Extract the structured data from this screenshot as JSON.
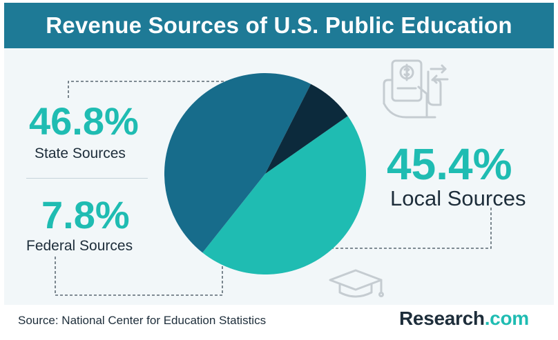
{
  "title": "Revenue Sources of U.S. Public Education",
  "source": "Source: National Center for Education Statistics",
  "brand": {
    "name": "Research",
    "suffix": ".com"
  },
  "labels": {
    "state": {
      "pct": "46.8%",
      "name": "State Sources"
    },
    "federal": {
      "pct": "7.8%",
      "name": "Federal Sources"
    },
    "local": {
      "pct": "45.4%",
      "name": "Local Sources"
    }
  },
  "chart_data": {
    "type": "pie",
    "title": "Revenue Sources of U.S. Public Education",
    "slices": [
      {
        "label": "State Sources",
        "value": 46.8,
        "color": "#176c8b"
      },
      {
        "label": "Federal Sources",
        "value": 7.8,
        "color": "#0c2a3c"
      },
      {
        "label": "Local Sources",
        "value": 45.4,
        "color": "#1fbcb2"
      }
    ]
  },
  "icons": [
    "payment-hand-icon",
    "graduation-cap-icon"
  ],
  "colors": {
    "header": "#1e7a96",
    "accent": "#1fbcb2",
    "text": "#1d2d3a",
    "background": "#f2f7f9"
  }
}
